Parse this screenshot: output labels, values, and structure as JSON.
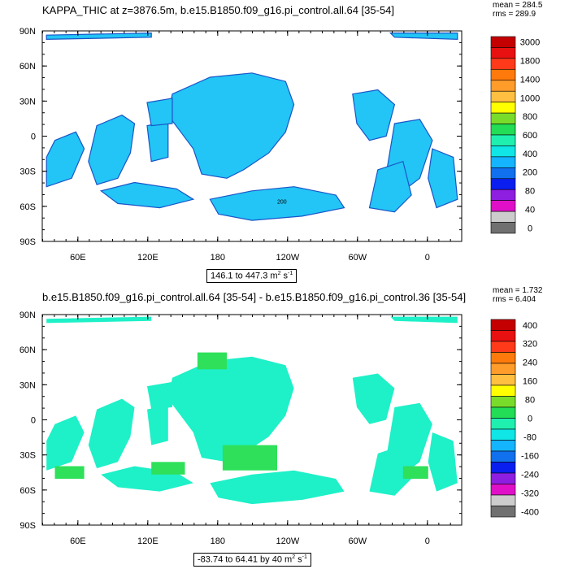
{
  "chart_data": [
    {
      "type": "heatmap",
      "title": "KAPPA_THIC at z=3876.5m, b.e15.B1850.f09_g16.pi_control.all.64 [35-54]",
      "stats": {
        "mean": "mean = 284.5",
        "rms": "rms = 289.9"
      },
      "range_label": "146.1 to 447.3",
      "range_units": "m",
      "range_units_sup": "2",
      "range_units_tail": " s",
      "range_units_tail_sup": "-1",
      "x_tick_labels": [
        "60E",
        "120E",
        "180",
        "120W",
        "60W",
        "0"
      ],
      "y_tick_labels": [
        "90N",
        "60N",
        "30N",
        "0",
        "30S",
        "60S",
        "90S"
      ],
      "colorbar_labels": [
        "3000",
        "1800",
        "1400",
        "1000",
        "800",
        "600",
        "400",
        "200",
        "80",
        "40",
        "0"
      ],
      "colorbar_colors": [
        "#c40000",
        "#e81010",
        "#ff3a1a",
        "#ff7a0a",
        "#ff9c2a",
        "#ffbf40",
        "#ffff00",
        "#7adc2a",
        "#22dd55",
        "#1ff0b0",
        "#10e6e6",
        "#14b4ff",
        "#1070ee",
        "#0a1ef0",
        "#8e1ee0",
        "#e010c8",
        "#cccccc",
        "#707070"
      ],
      "contour_label": "200",
      "dominant_fill": "#22c5f5"
    },
    {
      "type": "heatmap",
      "title": "b.e15.B1850.f09_g16.pi_control.all.64 [35-54] - b.e15.B1850.f09_g16.pi_control.36 [35-54]",
      "stats": {
        "mean": "mean = 1.732",
        "rms": "rms = 6.404"
      },
      "range_label": "-83.74 to 64.41 by 40",
      "range_units": "m",
      "range_units_sup": "2",
      "range_units_tail": " s",
      "range_units_tail_sup": "-1",
      "x_tick_labels": [
        "60E",
        "120E",
        "180",
        "120W",
        "60W",
        "0"
      ],
      "y_tick_labels": [
        "90N",
        "60N",
        "30N",
        "0",
        "30S",
        "60S",
        "90S"
      ],
      "colorbar_labels": [
        "400",
        "320",
        "240",
        "160",
        "80",
        "0",
        "-80",
        "-160",
        "-240",
        "-320",
        "-400"
      ],
      "colorbar_colors": [
        "#c40000",
        "#e81010",
        "#ff3a1a",
        "#ff7a0a",
        "#ff9c2a",
        "#ffbf40",
        "#ffff00",
        "#7adc2a",
        "#22dd55",
        "#1ff0b0",
        "#10e6e6",
        "#14b4ff",
        "#1070ee",
        "#0a1ef0",
        "#8e1ee0",
        "#e010c8",
        "#cccccc",
        "#707070"
      ],
      "dominant_fill": "#1ef0c8"
    }
  ]
}
